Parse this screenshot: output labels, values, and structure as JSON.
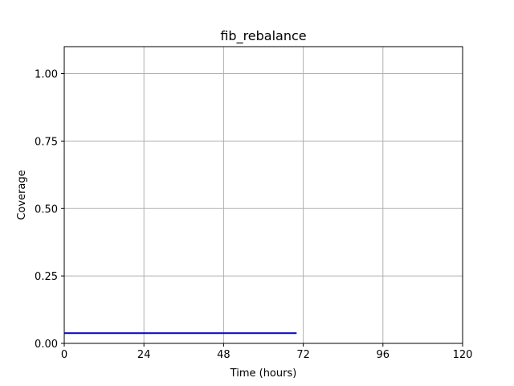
{
  "chart_data": {
    "type": "line",
    "title": "fib_rebalance",
    "xlabel": "Time (hours)",
    "ylabel": "Coverage",
    "xlim": [
      0,
      120
    ],
    "ylim": [
      0,
      1.1
    ],
    "xticks": [
      0,
      24,
      48,
      72,
      96,
      120
    ],
    "yticks": [
      0.0,
      0.25,
      0.5,
      0.75,
      1.0
    ],
    "xtick_labels": [
      "0",
      "24",
      "48",
      "72",
      "96",
      "120"
    ],
    "ytick_labels": [
      "0.00",
      "0.25",
      "0.50",
      "0.75",
      "1.00"
    ],
    "grid": true,
    "series": [
      {
        "color": "#0000cc",
        "x": [
          0,
          70
        ],
        "y": [
          0.038,
          0.038
        ]
      }
    ]
  }
}
